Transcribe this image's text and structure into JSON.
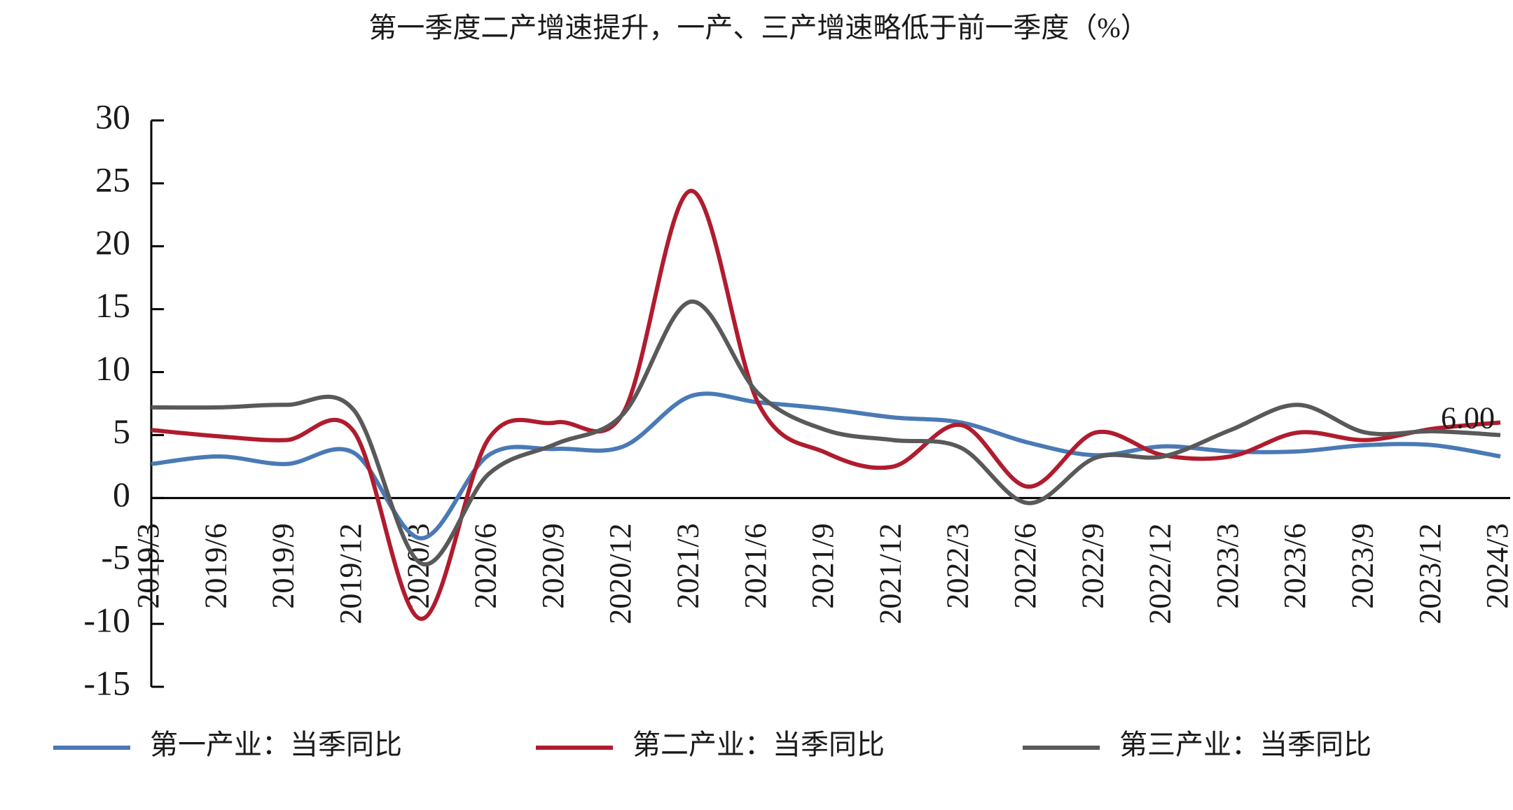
{
  "chart_data": {
    "type": "line",
    "title": "第一季度二产增速提升，一产、三产增速略低于前一季度（%）",
    "categories": [
      "2019/3",
      "2019/6",
      "2019/9",
      "2019/12",
      "2020/3",
      "2020/6",
      "2020/9",
      "2020/12",
      "2021/3",
      "2021/6",
      "2021/9",
      "2021/12",
      "2022/3",
      "2022/6",
      "2022/9",
      "2022/12",
      "2023/3",
      "2023/6",
      "2023/9",
      "2023/12",
      "2024/3"
    ],
    "series": [
      {
        "name": "第一产业：当季同比",
        "color": "#4a7ab5",
        "values": [
          2.7,
          3.3,
          2.7,
          3.6,
          -3.2,
          3.4,
          3.9,
          4.1,
          8.1,
          7.6,
          7.1,
          6.4,
          6.0,
          4.4,
          3.4,
          4.1,
          3.7,
          3.7,
          4.2,
          4.2,
          3.3
        ]
      },
      {
        "name": "第二产业：当季同比",
        "color": "#b01c2e",
        "values": [
          5.4,
          4.9,
          4.6,
          5.3,
          -9.6,
          4.7,
          6.0,
          6.8,
          24.4,
          7.5,
          3.6,
          2.5,
          5.8,
          0.9,
          5.2,
          3.4,
          3.3,
          5.2,
          4.6,
          5.5,
          6.0
        ],
        "value_labels": [
          null,
          null,
          null,
          null,
          null,
          null,
          null,
          null,
          null,
          null,
          null,
          null,
          null,
          null,
          null,
          null,
          null,
          null,
          null,
          null,
          "6.00"
        ]
      },
      {
        "name": "第三产业：当季同比",
        "color": "#595959",
        "values": [
          7.2,
          7.2,
          7.4,
          7.0,
          -5.2,
          1.9,
          4.3,
          6.7,
          15.6,
          8.3,
          5.4,
          4.6,
          4.0,
          -0.4,
          3.2,
          3.3,
          5.4,
          7.4,
          5.2,
          5.3,
          5.0
        ]
      }
    ],
    "ylim": [
      -15,
      30
    ],
    "yticks": [
      -15,
      -10,
      -5,
      0,
      5,
      10,
      15,
      20,
      25,
      30
    ],
    "grid": false
  }
}
